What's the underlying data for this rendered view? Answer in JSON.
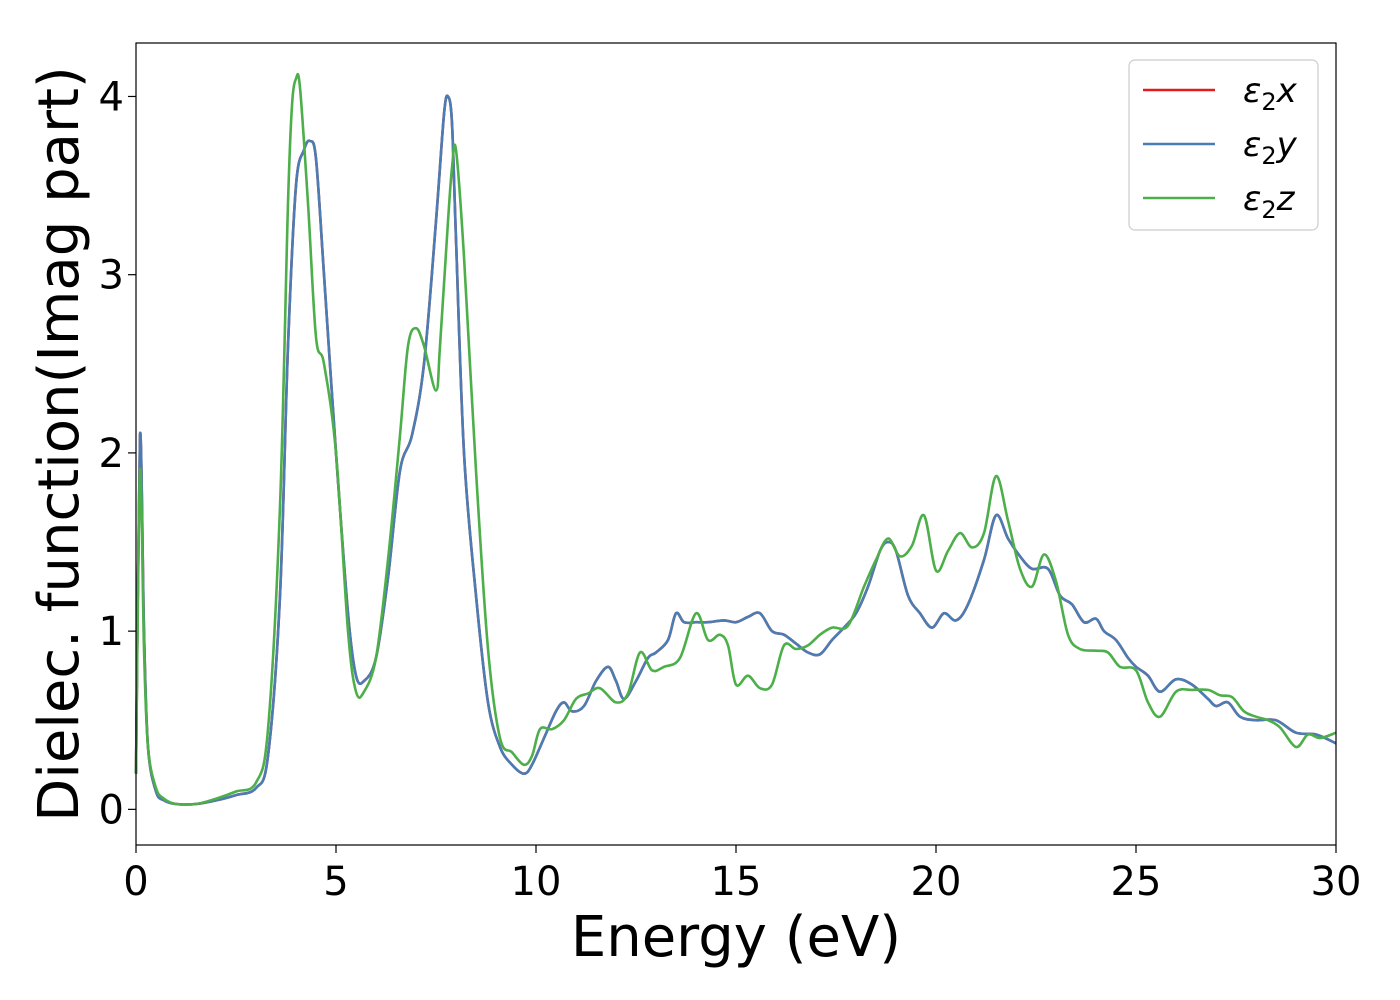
{
  "chart_data": {
    "type": "line",
    "xlabel": "Energy (eV)",
    "ylabel": "Dielec. function(Imag part)",
    "xlim": [
      0,
      30
    ],
    "ylim": [
      -0.2,
      4.3
    ],
    "xticks": [
      0,
      5,
      10,
      15,
      20,
      25,
      30
    ],
    "yticks": [
      0,
      1,
      2,
      3,
      4
    ],
    "grid": false,
    "legend_position": "top-right",
    "series": [
      {
        "name": "ε2x",
        "legend_main": "ε",
        "legend_sub": "2",
        "legend_var": "x",
        "color": "#e41a1c",
        "x": [
          0,
          0.1,
          0.2,
          0.3,
          0.5,
          0.7,
          1.0,
          1.5,
          2.0,
          2.5,
          3.0,
          3.3,
          3.6,
          3.8,
          4.0,
          4.2,
          4.35,
          4.5,
          4.7,
          5.0,
          5.3,
          5.5,
          5.7,
          6.0,
          6.3,
          6.6,
          6.9,
          7.2,
          7.5,
          7.7,
          7.8,
          7.9,
          8.0,
          8.2,
          8.5,
          8.8,
          9.1,
          9.4,
          9.7,
          9.9,
          10.2,
          10.5,
          10.7,
          10.9,
          11.2,
          11.5,
          11.8,
          12.0,
          12.2,
          12.5,
          12.8,
          13.0,
          13.3,
          13.5,
          13.7,
          14.0,
          14.3,
          14.7,
          15.0,
          15.3,
          15.6,
          15.9,
          16.2,
          16.5,
          16.8,
          17.1,
          17.4,
          17.7,
          18.0,
          18.3,
          18.6,
          18.8,
          19.0,
          19.3,
          19.6,
          19.9,
          20.2,
          20.5,
          20.8,
          21.2,
          21.5,
          21.8,
          22.1,
          22.4,
          22.8,
          23.1,
          23.4,
          23.7,
          24.0,
          24.2,
          24.5,
          24.8,
          25.0,
          25.3,
          25.6,
          26.0,
          26.4,
          26.8,
          27.0,
          27.3,
          27.6,
          28.0,
          28.5,
          29.0,
          29.5,
          30.0
        ],
        "y": [
          0.2,
          2.1,
          1.0,
          0.35,
          0.1,
          0.05,
          0.03,
          0.03,
          0.05,
          0.08,
          0.12,
          0.3,
          1.2,
          2.6,
          3.5,
          3.7,
          3.75,
          3.65,
          3.0,
          2.0,
          1.1,
          0.75,
          0.72,
          0.85,
          1.3,
          1.9,
          2.1,
          2.5,
          3.3,
          3.9,
          4.0,
          3.85,
          3.2,
          2.0,
          1.2,
          0.6,
          0.35,
          0.25,
          0.2,
          0.25,
          0.4,
          0.55,
          0.6,
          0.55,
          0.58,
          0.72,
          0.8,
          0.72,
          0.62,
          0.72,
          0.85,
          0.88,
          0.95,
          1.1,
          1.05,
          1.05,
          1.05,
          1.06,
          1.05,
          1.08,
          1.1,
          1.0,
          0.98,
          0.93,
          0.88,
          0.87,
          0.95,
          1.02,
          1.1,
          1.25,
          1.45,
          1.5,
          1.45,
          1.2,
          1.1,
          1.02,
          1.1,
          1.06,
          1.15,
          1.4,
          1.65,
          1.52,
          1.42,
          1.35,
          1.35,
          1.2,
          1.15,
          1.05,
          1.07,
          1.0,
          0.95,
          0.85,
          0.8,
          0.75,
          0.66,
          0.73,
          0.7,
          0.62,
          0.58,
          0.6,
          0.52,
          0.5,
          0.5,
          0.43,
          0.42,
          0.37
        ]
      },
      {
        "name": "ε2y",
        "legend_main": "ε",
        "legend_sub": "2",
        "legend_var": "y",
        "color": "#4a7db3",
        "x": [
          0,
          0.1,
          0.2,
          0.3,
          0.5,
          0.7,
          1.0,
          1.5,
          2.0,
          2.5,
          3.0,
          3.3,
          3.6,
          3.8,
          4.0,
          4.2,
          4.35,
          4.5,
          4.7,
          5.0,
          5.3,
          5.5,
          5.7,
          6.0,
          6.3,
          6.6,
          6.9,
          7.2,
          7.5,
          7.7,
          7.8,
          7.9,
          8.0,
          8.2,
          8.5,
          8.8,
          9.1,
          9.4,
          9.7,
          9.9,
          10.2,
          10.5,
          10.7,
          10.9,
          11.2,
          11.5,
          11.8,
          12.0,
          12.2,
          12.5,
          12.8,
          13.0,
          13.3,
          13.5,
          13.7,
          14.0,
          14.3,
          14.7,
          15.0,
          15.3,
          15.6,
          15.9,
          16.2,
          16.5,
          16.8,
          17.1,
          17.4,
          17.7,
          18.0,
          18.3,
          18.6,
          18.8,
          19.0,
          19.3,
          19.6,
          19.9,
          20.2,
          20.5,
          20.8,
          21.2,
          21.5,
          21.8,
          22.1,
          22.4,
          22.8,
          23.1,
          23.4,
          23.7,
          24.0,
          24.2,
          24.5,
          24.8,
          25.0,
          25.3,
          25.6,
          26.0,
          26.4,
          26.8,
          27.0,
          27.3,
          27.6,
          28.0,
          28.5,
          29.0,
          29.5,
          30.0
        ],
        "y": [
          0.2,
          2.1,
          1.0,
          0.35,
          0.1,
          0.05,
          0.03,
          0.03,
          0.05,
          0.08,
          0.12,
          0.3,
          1.2,
          2.6,
          3.5,
          3.7,
          3.75,
          3.65,
          3.0,
          2.0,
          1.1,
          0.75,
          0.72,
          0.85,
          1.3,
          1.9,
          2.1,
          2.5,
          3.3,
          3.9,
          4.0,
          3.85,
          3.2,
          2.0,
          1.2,
          0.6,
          0.35,
          0.25,
          0.2,
          0.25,
          0.4,
          0.55,
          0.6,
          0.55,
          0.58,
          0.72,
          0.8,
          0.72,
          0.62,
          0.72,
          0.85,
          0.88,
          0.95,
          1.1,
          1.05,
          1.05,
          1.05,
          1.06,
          1.05,
          1.08,
          1.1,
          1.0,
          0.98,
          0.93,
          0.88,
          0.87,
          0.95,
          1.02,
          1.1,
          1.25,
          1.45,
          1.5,
          1.45,
          1.2,
          1.1,
          1.02,
          1.1,
          1.06,
          1.15,
          1.4,
          1.65,
          1.52,
          1.42,
          1.35,
          1.35,
          1.2,
          1.15,
          1.05,
          1.07,
          1.0,
          0.95,
          0.85,
          0.8,
          0.75,
          0.66,
          0.73,
          0.7,
          0.62,
          0.58,
          0.6,
          0.52,
          0.5,
          0.5,
          0.43,
          0.42,
          0.37
        ]
      },
      {
        "name": "ε2z",
        "legend_main": "ε",
        "legend_sub": "2",
        "legend_var": "z",
        "color": "#4daf4a",
        "x": [
          0,
          0.1,
          0.2,
          0.3,
          0.5,
          0.7,
          1.0,
          1.5,
          2.0,
          2.5,
          3.0,
          3.3,
          3.6,
          3.8,
          3.9,
          4.0,
          4.1,
          4.3,
          4.5,
          4.7,
          5.0,
          5.3,
          5.5,
          5.7,
          6.0,
          6.3,
          6.6,
          6.8,
          7.0,
          7.2,
          7.5,
          7.6,
          7.8,
          7.9,
          8.0,
          8.2,
          8.5,
          8.8,
          9.1,
          9.4,
          9.7,
          9.9,
          10.1,
          10.4,
          10.7,
          11.0,
          11.3,
          11.6,
          12.0,
          12.3,
          12.6,
          12.9,
          13.2,
          13.6,
          14.0,
          14.3,
          14.6,
          14.8,
          15.0,
          15.3,
          15.6,
          15.9,
          16.2,
          16.5,
          16.8,
          17.1,
          17.4,
          17.8,
          18.2,
          18.5,
          18.8,
          19.1,
          19.4,
          19.7,
          20.0,
          20.3,
          20.6,
          20.9,
          21.2,
          21.5,
          21.8,
          22.1,
          22.4,
          22.7,
          23.0,
          23.3,
          23.6,
          24.0,
          24.3,
          24.6,
          25.0,
          25.3,
          25.6,
          26.0,
          26.4,
          26.8,
          27.1,
          27.4,
          27.7,
          28.0,
          28.3,
          28.6,
          29.0,
          29.3,
          29.6,
          30.0
        ],
        "y": [
          0.2,
          1.9,
          0.9,
          0.35,
          0.12,
          0.06,
          0.03,
          0.03,
          0.06,
          0.1,
          0.15,
          0.45,
          1.7,
          3.4,
          3.95,
          4.1,
          4.05,
          3.4,
          2.65,
          2.5,
          2.0,
          1.0,
          0.66,
          0.66,
          0.85,
          1.4,
          2.1,
          2.6,
          2.7,
          2.6,
          2.35,
          2.6,
          3.3,
          3.6,
          3.7,
          3.1,
          1.9,
          0.9,
          0.4,
          0.32,
          0.25,
          0.3,
          0.45,
          0.45,
          0.5,
          0.62,
          0.65,
          0.68,
          0.6,
          0.65,
          0.88,
          0.78,
          0.8,
          0.85,
          1.1,
          0.95,
          0.98,
          0.92,
          0.7,
          0.75,
          0.68,
          0.7,
          0.92,
          0.9,
          0.92,
          0.98,
          1.02,
          1.03,
          1.25,
          1.4,
          1.52,
          1.42,
          1.48,
          1.65,
          1.34,
          1.45,
          1.55,
          1.47,
          1.55,
          1.87,
          1.62,
          1.35,
          1.25,
          1.43,
          1.28,
          0.98,
          0.9,
          0.89,
          0.88,
          0.8,
          0.78,
          0.6,
          0.52,
          0.66,
          0.67,
          0.67,
          0.64,
          0.63,
          0.55,
          0.52,
          0.5,
          0.46,
          0.35,
          0.42,
          0.4,
          0.43
        ]
      }
    ]
  }
}
